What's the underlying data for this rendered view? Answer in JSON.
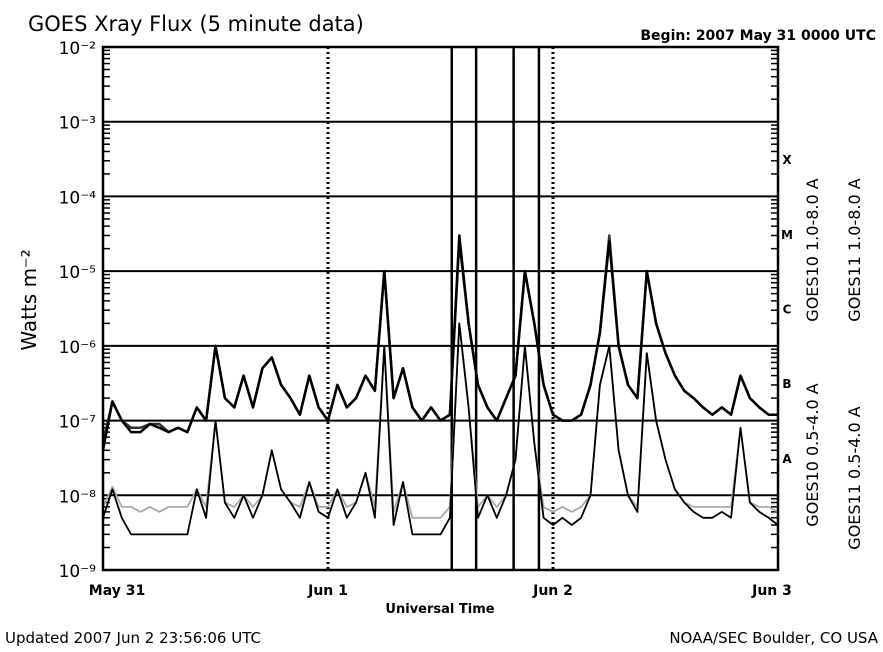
{
  "chart_data": {
    "type": "line",
    "title": "GOES Xray Flux (5 minute data)",
    "subtitle": "Begin:  2007 May 31 0000 UTC",
    "x_label": "Universal Time",
    "y_label": "Watts m⁻²",
    "footer_left": "Updated 2007 Jun  2 23:56:06 UTC",
    "footer_right": "NOAA/SEC Boulder, CO USA",
    "log_y": true,
    "grid": true,
    "xlim": [
      0,
      72
    ],
    "xticks": [
      {
        "value": 0,
        "label": "May 31"
      },
      {
        "value": 24,
        "label": "Jun 1"
      },
      {
        "value": 48,
        "label": "Jun 2"
      },
      {
        "value": 72,
        "label": "Jun 3"
      }
    ],
    "ylim": [
      1e-09,
      0.01
    ],
    "yticks": [
      {
        "value": 1e-09,
        "label": "10⁻⁹"
      },
      {
        "value": 1e-08,
        "label": "10⁻⁸"
      },
      {
        "value": 1e-07,
        "label": "10⁻⁷"
      },
      {
        "value": 1e-06,
        "label": "10⁻⁶"
      },
      {
        "value": 1e-05,
        "label": "10⁻⁵"
      },
      {
        "value": 0.0001,
        "label": "10⁻⁴"
      },
      {
        "value": 0.001,
        "label": "10⁻³"
      },
      {
        "value": 0.01,
        "label": "10⁻²"
      }
    ],
    "class_labels": [
      "A",
      "B",
      "C",
      "M",
      "X"
    ],
    "spikes_x": [
      37.2,
      39.8,
      43.8,
      46.5
    ],
    "x": [
      0,
      1,
      2,
      3,
      4,
      5,
      6,
      7,
      8,
      9,
      10,
      11,
      12,
      13,
      14,
      15,
      16,
      17,
      18,
      19,
      20,
      21,
      22,
      23,
      24,
      25,
      26,
      27,
      28,
      29,
      30,
      31,
      32,
      33,
      34,
      35,
      36,
      37,
      38,
      39,
      40,
      41,
      42,
      43,
      44,
      45,
      46,
      47,
      48,
      49,
      50,
      51,
      52,
      53,
      54,
      55,
      56,
      57,
      58,
      59,
      60,
      61,
      62,
      63,
      64,
      65,
      66,
      67,
      68,
      69,
      70,
      71,
      72
    ],
    "series": [
      {
        "name": "GOES10 1.0-8.0 A",
        "color": "#333333",
        "values": [
          5e-08,
          1.8e-07,
          1e-07,
          8e-08,
          8e-08,
          9e-08,
          9e-08,
          7e-08,
          8e-08,
          7e-08,
          1.5e-07,
          1e-07,
          1e-06,
          2e-07,
          1.5e-07,
          4e-07,
          1.5e-07,
          5e-07,
          7e-07,
          3e-07,
          2e-07,
          1.2e-07,
          4e-07,
          1.5e-07,
          1e-07,
          3e-07,
          1.5e-07,
          2e-07,
          4e-07,
          2.5e-07,
          1e-05,
          2e-07,
          5e-07,
          1.5e-07,
          1e-07,
          1.5e-07,
          1e-07,
          1.2e-07,
          2.5e-05,
          2e-06,
          3e-07,
          1.5e-07,
          1e-07,
          2e-07,
          4e-07,
          1e-05,
          2e-06,
          3e-07,
          1.2e-07,
          1e-07,
          1e-07,
          1.2e-07,
          3e-07,
          1.5e-06,
          3e-05,
          1e-06,
          3e-07,
          2e-07,
          1e-05,
          2e-06,
          8e-07,
          4e-07,
          2.5e-07,
          2e-07,
          1.5e-07,
          1.2e-07,
          1.5e-07,
          1.2e-07,
          4e-07,
          2e-07,
          1.5e-07,
          1.2e-07,
          1.2e-07
        ]
      },
      {
        "name": "GOES11 1.0-8.0 A",
        "color": "#000000",
        "values": [
          4e-08,
          1.8e-07,
          1e-07,
          7e-08,
          7e-08,
          9e-08,
          8e-08,
          7e-08,
          8e-08,
          7e-08,
          1.5e-07,
          1e-07,
          1e-06,
          2e-07,
          1.5e-07,
          4e-07,
          1.5e-07,
          5e-07,
          7e-07,
          3e-07,
          2e-07,
          1.2e-07,
          4e-07,
          1.5e-07,
          1e-07,
          3e-07,
          1.5e-07,
          2e-07,
          4e-07,
          2.5e-07,
          1e-05,
          2e-07,
          5e-07,
          1.5e-07,
          1e-07,
          1.5e-07,
          1e-07,
          1.2e-07,
          3e-05,
          2e-06,
          3e-07,
          1.5e-07,
          1e-07,
          2e-07,
          4e-07,
          1e-05,
          2e-06,
          3e-07,
          1.2e-07,
          1e-07,
          1e-07,
          1.2e-07,
          3e-07,
          1.5e-06,
          2.5e-05,
          1e-06,
          3e-07,
          2e-07,
          1e-05,
          2e-06,
          8e-07,
          4e-07,
          2.5e-07,
          2e-07,
          1.5e-07,
          1.2e-07,
          1.5e-07,
          1.2e-07,
          4e-07,
          2e-07,
          1.5e-07,
          1.2e-07,
          1.2e-07
        ]
      },
      {
        "name": "GOES10 0.5-4.0 A",
        "color": "#aaaaaa",
        "values": [
          7e-09,
          1.3e-08,
          7e-09,
          7e-09,
          6e-09,
          7e-09,
          6e-09,
          7e-09,
          7e-09,
          7e-09,
          1.2e-08,
          7e-09,
          1e-07,
          8e-09,
          7e-09,
          1e-08,
          7e-09,
          1e-08,
          4e-08,
          1.2e-08,
          8e-09,
          7e-09,
          1.5e-08,
          7e-09,
          7e-09,
          1.2e-08,
          7e-09,
          8e-09,
          2e-08,
          7e-09,
          1e-06,
          6e-09,
          1.5e-08,
          5e-09,
          5e-09,
          5e-09,
          5e-09,
          7e-09,
          2e-06,
          1.5e-07,
          7e-09,
          1e-08,
          7e-09,
          1e-08,
          3e-08,
          1e-06,
          5e-08,
          7e-09,
          6e-09,
          7e-09,
          6e-09,
          7e-09,
          1e-08,
          3e-07,
          1e-06,
          4e-08,
          1e-08,
          7e-09,
          8e-07,
          1e-07,
          3e-08,
          1.2e-08,
          8e-09,
          7e-09,
          7e-09,
          7e-09,
          7e-09,
          7e-09,
          8e-08,
          8e-09,
          7e-09,
          7e-09,
          6e-09
        ]
      },
      {
        "name": "GOES11 0.5-4.0 A",
        "color": "#000000",
        "values": [
          5e-09,
          1.2e-08,
          5e-09,
          3e-09,
          3e-09,
          3e-09,
          3e-09,
          3e-09,
          3e-09,
          3e-09,
          1.2e-08,
          5e-09,
          1e-07,
          8e-09,
          5e-09,
          1e-08,
          5e-09,
          1e-08,
          4e-08,
          1.2e-08,
          8e-09,
          5e-09,
          1.5e-08,
          6e-09,
          5e-09,
          1.2e-08,
          5e-09,
          8e-09,
          2e-08,
          5e-09,
          1e-06,
          4e-09,
          1.5e-08,
          3e-09,
          3e-09,
          3e-09,
          3e-09,
          5e-09,
          2e-06,
          1.5e-07,
          5e-09,
          1e-08,
          5e-09,
          1e-08,
          3e-08,
          1e-06,
          5e-08,
          5e-09,
          4e-09,
          5e-09,
          4e-09,
          5e-09,
          1e-08,
          3e-07,
          1e-06,
          4e-08,
          1e-08,
          6e-09,
          8e-07,
          1e-07,
          3e-08,
          1.2e-08,
          8e-09,
          6e-09,
          5e-09,
          5e-09,
          6e-09,
          5e-09,
          8e-08,
          8e-09,
          6e-09,
          5e-09,
          4e-09
        ]
      }
    ]
  }
}
